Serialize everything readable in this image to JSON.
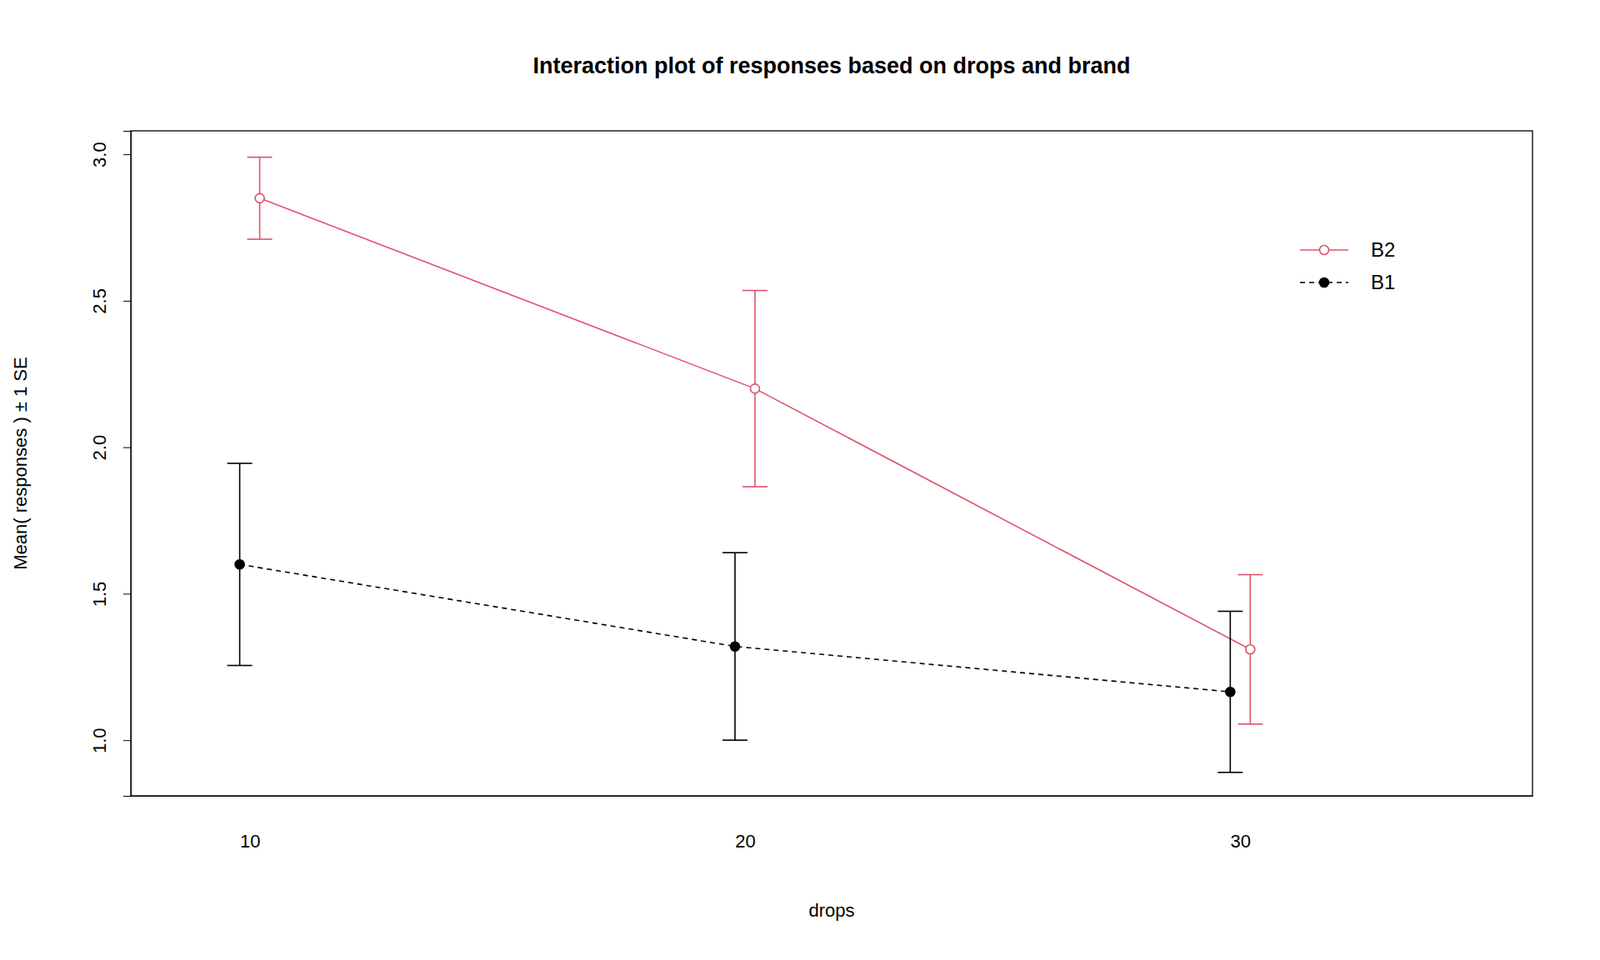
{
  "chart_data": {
    "type": "line",
    "title": "Interaction plot of responses based on drops and brand",
    "x_label": "drops",
    "y_label": "Mean( responses ) ± 1 SE",
    "x": [
      10,
      20,
      30
    ],
    "xlim": [
      7.6,
      35.9
    ],
    "xticks": [
      10,
      20,
      30
    ],
    "ylim": [
      0.81,
      3.08
    ],
    "yticks": [
      {
        "value": 1,
        "label": "1.0"
      },
      {
        "value": 1.5,
        "label": "1.5"
      },
      {
        "value": 2,
        "label": "2.0"
      },
      {
        "value": 2.5,
        "label": "2.5"
      },
      {
        "value": 3,
        "label": "3.0"
      }
    ],
    "grid": false,
    "legend": "top-right",
    "series": [
      {
        "name": "B2",
        "color": "#DF536B",
        "marker": "open-circle",
        "line_style": "solid",
        "values": [
          2.85,
          2.2,
          1.31
        ],
        "errors": [
          0.14,
          0.335,
          0.255
        ]
      },
      {
        "name": "B1",
        "color": "#000000",
        "marker": "filled-circle",
        "line_style": "dashed",
        "values": [
          1.6,
          1.32,
          1.165
        ],
        "errors": [
          0.345,
          0.32,
          0.275
        ]
      }
    ]
  }
}
